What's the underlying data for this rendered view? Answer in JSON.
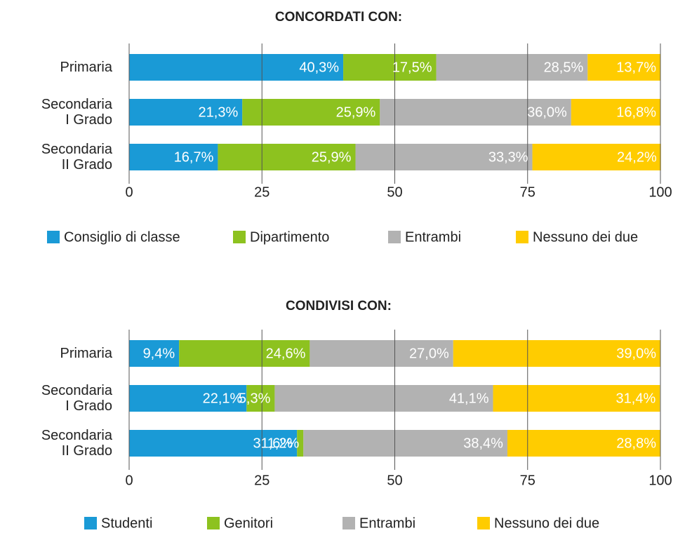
{
  "chart_data": [
    {
      "type": "bar",
      "orientation": "horizontal",
      "stacked": true,
      "title": "CONCORDATI CON:",
      "categories": [
        "Primaria",
        "Secondaria\nI Grado",
        "Secondaria\nII Grado"
      ],
      "series": [
        {
          "name": "Consiglio di classe",
          "color": "#1a9ad6",
          "values": [
            40.3,
            21.3,
            16.7
          ],
          "value_labels": [
            "40,3%",
            "21,3%",
            "16,7%"
          ]
        },
        {
          "name": "Dipartimento",
          "color": "#8dc21f",
          "values": [
            17.5,
            25.9,
            25.9
          ],
          "value_labels": [
            "17,5%",
            "25,9%",
            "25,9%"
          ]
        },
        {
          "name": "Entrambi",
          "color": "#b2b2b2",
          "values": [
            28.5,
            36.0,
            33.3
          ],
          "value_labels": [
            "28,5%",
            "36,0%",
            "33,3%"
          ]
        },
        {
          "name": "Nessuno dei due",
          "color": "#ffcc00",
          "values": [
            13.7,
            16.8,
            24.2
          ],
          "value_labels": [
            "13,7%",
            "16,8%",
            "24,2%"
          ]
        }
      ],
      "xlim": [
        0,
        100
      ],
      "xticks": [
        0,
        25,
        50,
        75,
        100
      ],
      "grid": true,
      "legend": "bottom"
    },
    {
      "type": "bar",
      "orientation": "horizontal",
      "stacked": true,
      "title": "CONDIVISI CON:",
      "categories": [
        "Primaria",
        "Secondaria\nI Grado",
        "Secondaria\nII Grado"
      ],
      "series": [
        {
          "name": "Studenti",
          "color": "#1a9ad6",
          "values": [
            9.4,
            22.1,
            31.6
          ],
          "value_labels": [
            "9,4%",
            "22,1%",
            "31,6%"
          ]
        },
        {
          "name": "Genitori",
          "color": "#8dc21f",
          "values": [
            24.6,
            5.3,
            1.2
          ],
          "value_labels": [
            "24,6%",
            "5,3%",
            "1,2%"
          ]
        },
        {
          "name": "Entrambi",
          "color": "#b2b2b2",
          "values": [
            27.0,
            41.1,
            38.4
          ],
          "value_labels": [
            "27,0%",
            "41,1%",
            "38,4%"
          ]
        },
        {
          "name": "Nessuno dei due",
          "color": "#ffcc00",
          "values": [
            39.0,
            31.4,
            28.8
          ],
          "value_labels": [
            "39,0%",
            "31,4%",
            "28,8%"
          ]
        }
      ],
      "xlim": [
        0,
        100
      ],
      "xticks": [
        0,
        25,
        50,
        75,
        100
      ],
      "grid": true,
      "legend": "bottom"
    }
  ]
}
